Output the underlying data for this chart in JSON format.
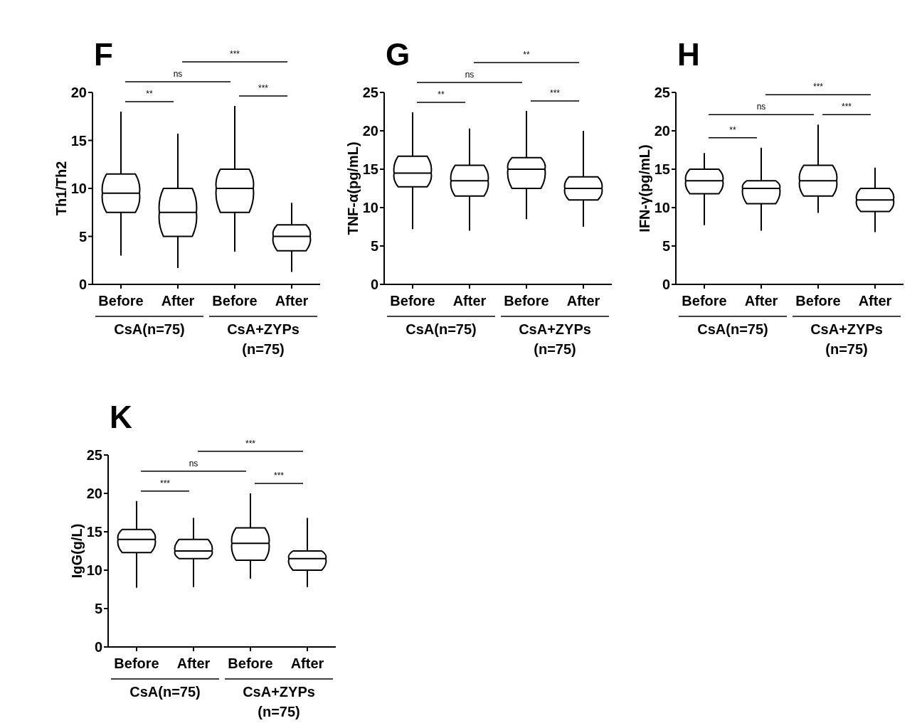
{
  "chart_data": [
    {
      "type": "box",
      "title": "F",
      "ylabel": "Th1/Th2",
      "categories": [
        "Before",
        "After",
        "Before",
        "After"
      ],
      "color": "#000000",
      "ylim": [
        0,
        20
      ],
      "yticks": [
        0,
        5,
        10,
        15,
        20
      ],
      "boxes": [
        {
          "low": 3.0,
          "q1": 7.5,
          "median": 9.5,
          "q3": 11.5,
          "high": 18.0
        },
        {
          "low": 1.7,
          "q1": 5.0,
          "median": 7.5,
          "q3": 10.0,
          "high": 15.7
        },
        {
          "low": 3.4,
          "q1": 7.5,
          "median": 10.0,
          "q3": 12.0,
          "high": 18.6
        },
        {
          "low": 1.3,
          "q1": 3.5,
          "median": 5.0,
          "q3": 6.2,
          "high": 8.5
        }
      ],
      "annotations": [
        "**",
        "***",
        "ns",
        "***",
        "CsA(n=75)",
        "CsA+ZYPs (n=75)"
      ]
    },
    {
      "type": "box",
      "title": "G",
      "ylabel": "TNF-α(pg/mL)",
      "categories": [
        "Before",
        "After",
        "Before",
        "After"
      ],
      "color": "#000000",
      "ylim": [
        0,
        25
      ],
      "yticks": [
        0,
        5,
        10,
        15,
        20,
        25
      ],
      "boxes": [
        {
          "low": 7.2,
          "q1": 12.7,
          "median": 14.5,
          "q3": 16.7,
          "high": 22.4
        },
        {
          "low": 7.0,
          "q1": 11.5,
          "median": 13.5,
          "q3": 15.5,
          "high": 20.3
        },
        {
          "low": 8.5,
          "q1": 12.5,
          "median": 15.0,
          "q3": 16.5,
          "high": 22.6
        },
        {
          "low": 7.5,
          "q1": 11.0,
          "median": 12.5,
          "q3": 14.0,
          "high": 20.0
        }
      ],
      "annotations": [
        "**",
        "***",
        "ns",
        "**",
        "CsA(n=75)",
        "CsA+ZYPs (n=75)"
      ]
    },
    {
      "type": "box",
      "title": "H",
      "ylabel": "IFN-γ(pg/mL)",
      "categories": [
        "Before",
        "After",
        "Before",
        "After"
      ],
      "color": "#000000",
      "ylim": [
        0,
        25
      ],
      "yticks": [
        0,
        5,
        10,
        15,
        20,
        25
      ],
      "boxes": [
        {
          "low": 7.7,
          "q1": 11.8,
          "median": 13.5,
          "q3": 15.0,
          "high": 17.1
        },
        {
          "low": 7.0,
          "q1": 10.5,
          "median": 12.5,
          "q3": 13.5,
          "high": 17.8
        },
        {
          "low": 9.3,
          "q1": 11.5,
          "median": 13.5,
          "q3": 15.5,
          "high": 20.8
        },
        {
          "low": 6.8,
          "q1": 9.5,
          "median": 11.0,
          "q3": 12.5,
          "high": 15.2
        }
      ],
      "annotations": [
        "**",
        "***",
        "ns",
        "***",
        "CsA(n=75)",
        "CsA+ZYPs (n=75)"
      ]
    },
    {
      "type": "box",
      "title": "K",
      "ylabel": "IgG(g/L)",
      "categories": [
        "Before",
        "After",
        "Before",
        "After"
      ],
      "color": "#000000",
      "ylim": [
        0,
        25
      ],
      "yticks": [
        0,
        5,
        10,
        15,
        20,
        25
      ],
      "boxes": [
        {
          "low": 7.7,
          "q1": 12.3,
          "median": 14.0,
          "q3": 15.3,
          "high": 19.0
        },
        {
          "low": 7.8,
          "q1": 11.5,
          "median": 12.5,
          "q3": 14.0,
          "high": 16.8
        },
        {
          "low": 8.9,
          "q1": 11.3,
          "median": 13.5,
          "q3": 15.5,
          "high": 20.0
        },
        {
          "low": 7.8,
          "q1": 10.0,
          "median": 11.5,
          "q3": 12.5,
          "high": 16.8
        }
      ],
      "annotations": [
        "***",
        "***",
        "ns",
        "***",
        "CsA(n=75)",
        "CsA+ZYPs (n=75)"
      ]
    }
  ]
}
